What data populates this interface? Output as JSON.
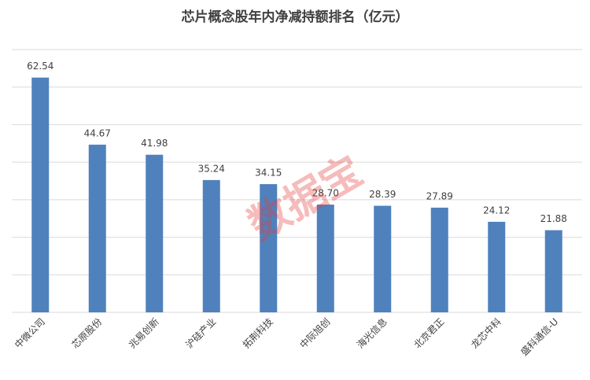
{
  "chart_data": {
    "type": "bar",
    "title": "芯片概念股年内净减持额排名（亿元）",
    "categories": [
      "中微公司",
      "芯原股份",
      "兆易创新",
      "沪硅产业",
      "拓荆科技",
      "中际旭创",
      "海光信息",
      "北京君正",
      "龙芯中科",
      "盛科通信-U"
    ],
    "values": [
      62.54,
      44.67,
      41.98,
      35.24,
      34.15,
      28.7,
      28.39,
      27.89,
      24.12,
      21.88
    ],
    "value_labels": [
      "62.54",
      "44.67",
      "41.98",
      "35.24",
      "34.15",
      "28.70",
      "28.39",
      "27.89",
      "24.12",
      "21.88"
    ],
    "color": "#4f81bd",
    "ylim": [
      0,
      70
    ],
    "yticks": [
      0,
      10,
      20,
      30,
      40,
      50,
      60,
      70
    ],
    "grid": true,
    "watermark": "数据宝"
  }
}
